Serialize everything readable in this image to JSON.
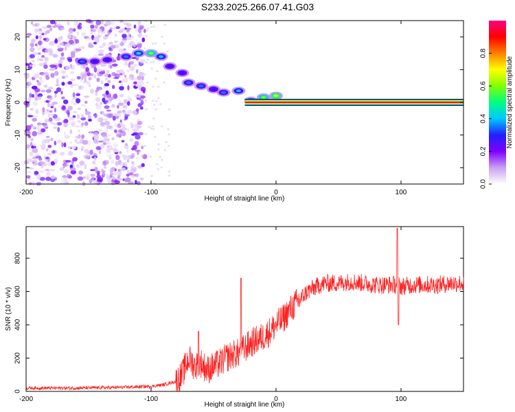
{
  "title": "S233.2025.266.07.41.G03",
  "chart_data": [
    {
      "type": "heatmap",
      "panel": "spectrogram",
      "xlabel": "Height of straight line (km)",
      "ylabel": "Frequency (Hz)",
      "xlim": [
        -200,
        150
      ],
      "ylim": [
        -25,
        25
      ],
      "xticks": [
        -200,
        -100,
        0,
        100
      ],
      "yticks": [
        -20,
        -10,
        0,
        10,
        20
      ],
      "colorbar": {
        "label": "Normalized spectral amplitude",
        "range": [
          0,
          1
        ],
        "ticks": [
          0.0,
          0.2,
          0.4,
          0.6,
          0.8
        ],
        "colors": [
          "#ffffff",
          "#c8a0f0",
          "#8000ff",
          "#2020ff",
          "#00c8ff",
          "#00ff80",
          "#80ff00",
          "#ffff00",
          "#ff8000",
          "#ff0000",
          "#ff0080"
        ]
      },
      "features": {
        "noise_region_x": [
          -200,
          -105
        ],
        "drifting_signal": [
          {
            "x": -155,
            "y": 12.5,
            "amp": 0.35
          },
          {
            "x": -145,
            "y": 12.5,
            "amp": 0.3
          },
          {
            "x": -135,
            "y": 13,
            "amp": 0.3
          },
          {
            "x": -120,
            "y": 14,
            "amp": 0.35
          },
          {
            "x": -110,
            "y": 15,
            "amp": 0.45
          },
          {
            "x": -100,
            "y": 15,
            "amp": 0.6
          },
          {
            "x": -92,
            "y": 14,
            "amp": 0.4
          },
          {
            "x": -85,
            "y": 11,
            "amp": 0.3
          },
          {
            "x": -75,
            "y": 9,
            "amp": 0.3
          },
          {
            "x": -70,
            "y": 6,
            "amp": 0.35
          },
          {
            "x": -60,
            "y": 5,
            "amp": 0.35
          },
          {
            "x": -50,
            "y": 4,
            "amp": 0.3
          },
          {
            "x": -42,
            "y": 3,
            "amp": 0.35
          },
          {
            "x": -30,
            "y": 3.5,
            "amp": 0.4
          },
          {
            "x": -20,
            "y": 0.5,
            "amp": 0.5
          },
          {
            "x": -10,
            "y": 1.5,
            "amp": 0.6
          },
          {
            "x": 0,
            "y": 2,
            "amp": 0.7
          }
        ],
        "steady_tone": {
          "x_start": -25,
          "x_end": 150,
          "y": 0,
          "amp": 0.95
        }
      }
    },
    {
      "type": "line",
      "panel": "snr",
      "xlabel": "Height of straight line (km)",
      "ylabel": "SNR (10 * v/v)",
      "xlim": [
        -200,
        150
      ],
      "ylim": [
        0,
        990
      ],
      "xticks": [
        -200,
        -100,
        0,
        100
      ],
      "yticks": [
        0,
        200,
        400,
        600,
        800
      ],
      "series": [
        {
          "name": "SNR",
          "color": "#ff2020",
          "x": [
            -200,
            -180,
            -160,
            -140,
            -120,
            -100,
            -90,
            -80,
            -75,
            -70,
            -65,
            -60,
            -55,
            -50,
            -45,
            -40,
            -35,
            -30,
            -25,
            -20,
            -15,
            -10,
            -5,
            0,
            5,
            10,
            15,
            20,
            25,
            30,
            35,
            40,
            50,
            60,
            70,
            80,
            90,
            96,
            98,
            100,
            110,
            120,
            130,
            140,
            150
          ],
          "values": [
            20,
            20,
            20,
            22,
            25,
            30,
            40,
            60,
            100,
            200,
            150,
            170,
            130,
            150,
            170,
            200,
            220,
            230,
            260,
            290,
            310,
            330,
            360,
            400,
            430,
            480,
            520,
            560,
            600,
            620,
            640,
            650,
            650,
            660,
            650,
            640,
            640,
            640,
            650,
            630,
            640,
            640,
            640,
            650,
            650
          ]
        }
      ],
      "spikes": [
        {
          "x": -62,
          "y": 360
        },
        {
          "x": -28,
          "y": 680
        },
        {
          "x": 97,
          "y": 980
        },
        {
          "x": 98,
          "y": 400
        }
      ]
    }
  ]
}
